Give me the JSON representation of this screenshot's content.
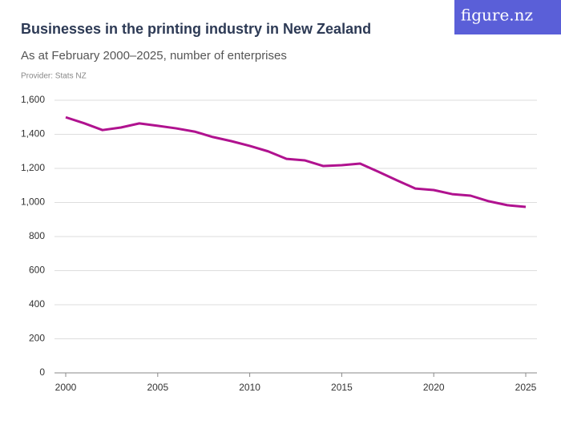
{
  "logo": "figure.nz",
  "chart_data": {
    "type": "line",
    "title": "Businesses in the printing industry in New Zealand",
    "subtitle": "As at February 2000–2025, number of enterprises",
    "provider": "Provider: Stats NZ",
    "x": [
      2000,
      2001,
      2002,
      2003,
      2004,
      2005,
      2006,
      2007,
      2008,
      2009,
      2010,
      2011,
      2012,
      2013,
      2014,
      2015,
      2016,
      2017,
      2018,
      2019,
      2020,
      2021,
      2022,
      2023,
      2024,
      2025
    ],
    "values": [
      1500,
      1465,
      1425,
      1440,
      1464,
      1450,
      1435,
      1416,
      1384,
      1360,
      1332,
      1300,
      1256,
      1247,
      1214,
      1219,
      1228,
      1180,
      1130,
      1082,
      1073,
      1049,
      1040,
      1007,
      984,
      974
    ],
    "color": "#b0128f",
    "xlim": [
      2000,
      2025
    ],
    "xticks": [
      2000,
      2005,
      2010,
      2015,
      2020,
      2025
    ],
    "ylim": [
      0,
      1600
    ],
    "yticks": [
      0,
      200,
      400,
      600,
      800,
      {
        "value": 1000,
        "label": "1,000"
      },
      {
        "value": 1200,
        "label": "1,200"
      },
      {
        "value": 1400,
        "label": "1,400"
      },
      {
        "value": 1600,
        "label": "1,600"
      }
    ],
    "grid": true
  }
}
